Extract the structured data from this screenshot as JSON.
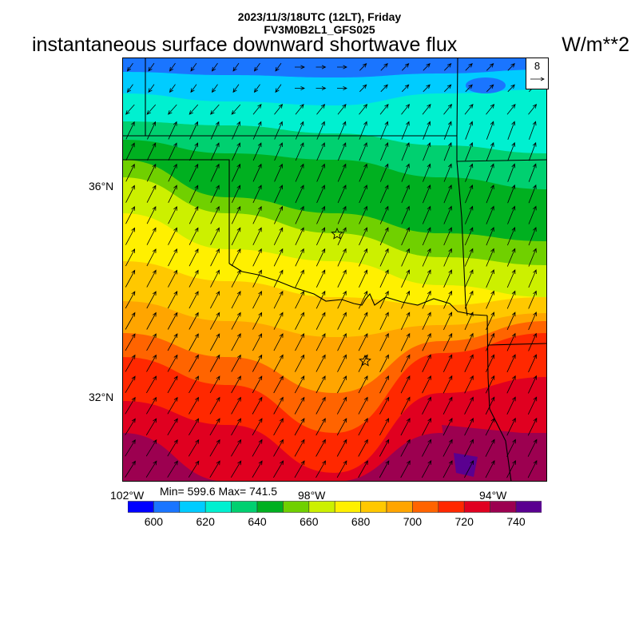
{
  "header": {
    "datetime": "2023/11/3/18UTC (12LT), Friday",
    "model": "FV3M0B2L1_GFS025",
    "field_title": "instantaneous surface downward shortwave flux",
    "units": "W/m**2"
  },
  "map": {
    "lat_labels": [
      "36°N",
      "32°N"
    ],
    "lon_labels": [
      "102°W",
      "98°W",
      "94°W"
    ],
    "vector_reference": "8",
    "min_max": "Min= 599.6 Max= 741.5"
  },
  "colorbar": {
    "levels": [
      590,
      600,
      610,
      620,
      630,
      640,
      650,
      660,
      670,
      680,
      690,
      700,
      710,
      720,
      730,
      740,
      750
    ],
    "colors": [
      "#0000ff",
      "#1a75ff",
      "#00ccff",
      "#00f0d0",
      "#00d070",
      "#00b020",
      "#70d000",
      "#ccf000",
      "#fff000",
      "#ffc800",
      "#ffa500",
      "#ff6400",
      "#ff2800",
      "#e00020",
      "#9c0050",
      "#5a0090"
    ],
    "labels": [
      "600",
      "620",
      "640",
      "660",
      "680",
      "700",
      "720",
      "740"
    ]
  }
}
